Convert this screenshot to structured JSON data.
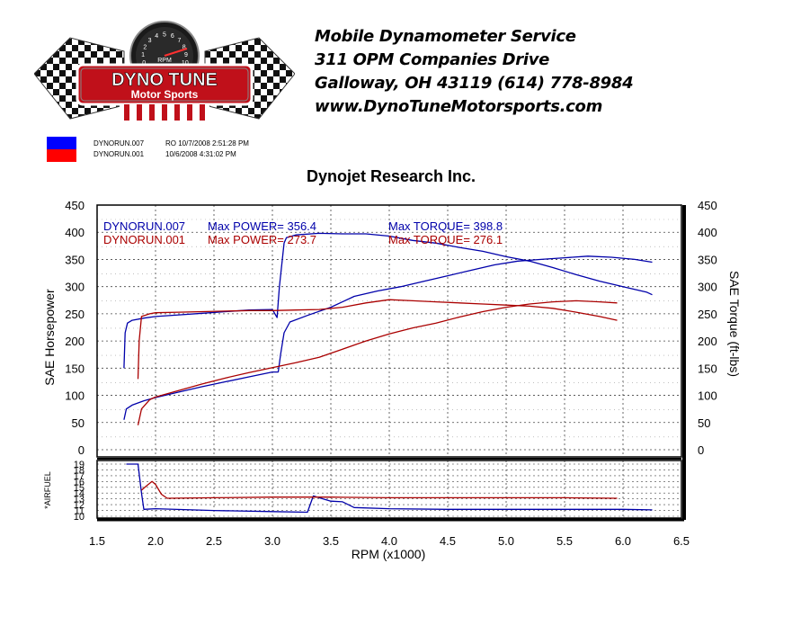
{
  "header": {
    "logo": {
      "line1": "DYNO TUNE",
      "line2": "Motor Sports",
      "gauge_label": "RPM",
      "gauge_numbers": [
        "0",
        "1",
        "2",
        "3",
        "4",
        "5",
        "6",
        "7",
        "8",
        "9",
        "10"
      ]
    },
    "address_lines": [
      "Mobile Dynamometer Service",
      "311 OPM Companies Drive",
      "Galloway, OH  43119   (614)  778-8984",
      "www.DynoTuneMotorsports.com"
    ]
  },
  "runs": [
    {
      "file": "DYNORUN.007",
      "note": "RO 10/7/2008 2:51:28 PM",
      "color": "#0000aa"
    },
    {
      "file": "DYNORUN.001",
      "note": "10/6/2008 4:31:02 PM",
      "color": "#aa0000"
    }
  ],
  "chart_data": {
    "type": "line",
    "title": "Dynojet  Research  Inc.",
    "xlabel": "RPM (x1000)",
    "ylabel_left": "SAE Horsepower",
    "ylabel_right": "SAE Torque (ft-lbs)",
    "ylabel_af": "*AIRFUEL",
    "xlim": [
      1.5,
      6.5
    ],
    "ylim": [
      0,
      450
    ],
    "af_lim": [
      10,
      19
    ],
    "x_ticks": [
      "1.5",
      "2.0",
      "2.5",
      "3.0",
      "3.5",
      "4.0",
      "4.5",
      "5.0",
      "5.5",
      "6.0",
      "6.5"
    ],
    "y_ticks": [
      "0",
      "50",
      "100",
      "150",
      "200",
      "250",
      "300",
      "350",
      "400",
      "450"
    ],
    "af_ticks": [
      "10",
      "11",
      "12",
      "13",
      "14",
      "15",
      "16",
      "17",
      "18",
      "19"
    ],
    "grid": true,
    "legend": [
      {
        "run": "DYNORUN.007",
        "power_label": "Max POWER= 356.4",
        "torque_label": "Max TORQUE= 398.8",
        "color": "#0000aa"
      },
      {
        "run": "DYNORUN.001",
        "power_label": "Max POWER= 273.7",
        "torque_label": "Max TORQUE= 276.1",
        "color": "#aa0000"
      }
    ],
    "series": [
      {
        "run": "DYNORUN.007",
        "quantity": "power",
        "color": "#0000aa",
        "x": [
          1.73,
          1.75,
          1.8,
          1.9,
          2.0,
          2.2,
          2.4,
          2.6,
          2.8,
          3.0,
          3.05,
          3.07,
          3.1,
          3.15,
          3.3,
          3.5,
          3.7,
          3.9,
          4.1,
          4.3,
          4.5,
          4.7,
          4.9,
          5.1,
          5.3,
          5.5,
          5.7,
          5.9,
          6.1,
          6.25
        ],
        "y": [
          55,
          75,
          82,
          90,
          96,
          106,
          116,
          125,
          134,
          143,
          143,
          175,
          215,
          235,
          247,
          262,
          282,
          292,
          300,
          310,
          320,
          330,
          340,
          347,
          350,
          353,
          356,
          354,
          350,
          345
        ]
      },
      {
        "run": "DYNORUN.007",
        "quantity": "torque",
        "color": "#0000aa",
        "x": [
          1.73,
          1.74,
          1.76,
          1.8,
          1.9,
          2.0,
          2.2,
          2.4,
          2.6,
          2.8,
          3.0,
          3.04,
          3.06,
          3.1,
          3.12,
          3.2,
          3.4,
          3.6,
          3.8,
          4.0,
          4.2,
          4.4,
          4.6,
          4.8,
          5.0,
          5.2,
          5.4,
          5.6,
          5.8,
          6.0,
          6.2,
          6.25
        ],
        "y": [
          150,
          215,
          233,
          238,
          242,
          245,
          248,
          251,
          254,
          257,
          258,
          243,
          300,
          380,
          390,
          395,
          398,
          397,
          397,
          393,
          385,
          380,
          372,
          365,
          355,
          347,
          335,
          322,
          310,
          300,
          290,
          285
        ]
      },
      {
        "run": "DYNORUN.001",
        "quantity": "power",
        "color": "#aa0000",
        "x": [
          1.85,
          1.88,
          1.95,
          2.0,
          2.2,
          2.4,
          2.6,
          2.8,
          3.0,
          3.2,
          3.4,
          3.6,
          3.8,
          4.0,
          4.2,
          4.4,
          4.6,
          4.8,
          5.0,
          5.2,
          5.4,
          5.6,
          5.8,
          5.95
        ],
        "y": [
          45,
          75,
          92,
          97,
          109,
          121,
          132,
          142,
          151,
          160,
          170,
          185,
          200,
          213,
          224,
          233,
          244,
          254,
          262,
          268,
          272,
          274,
          272,
          270
        ]
      },
      {
        "run": "DYNORUN.001",
        "quantity": "torque",
        "color": "#aa0000",
        "x": [
          1.85,
          1.86,
          1.88,
          1.95,
          2.0,
          2.2,
          2.4,
          2.6,
          2.8,
          3.0,
          3.2,
          3.4,
          3.6,
          3.8,
          4.0,
          4.2,
          4.4,
          4.6,
          4.8,
          5.0,
          5.2,
          5.4,
          5.6,
          5.8,
          5.95
        ],
        "y": [
          130,
          200,
          245,
          250,
          252,
          253,
          254,
          255,
          256,
          256,
          257,
          258,
          262,
          270,
          276,
          274,
          272,
          270,
          268,
          266,
          264,
          260,
          253,
          245,
          238
        ]
      },
      {
        "run": "DYNORUN.007",
        "quantity": "airfuel",
        "color": "#0000aa",
        "x": [
          1.75,
          1.85,
          1.88,
          1.9,
          2.0,
          2.5,
          3.0,
          3.3,
          3.35,
          3.4,
          3.5,
          3.6,
          3.7,
          4.0,
          4.5,
          5.0,
          5.5,
          6.0,
          6.25
        ],
        "y": [
          19,
          19,
          14,
          11.2,
          11.3,
          11,
          10.8,
          10.7,
          13.5,
          13.2,
          12.6,
          12.5,
          11.5,
          11.3,
          11.2,
          11.2,
          11.2,
          11.2,
          11.1
        ]
      },
      {
        "run": "DYNORUN.001",
        "quantity": "airfuel",
        "color": "#aa0000",
        "x": [
          1.88,
          1.92,
          1.97,
          2.0,
          2.05,
          2.1,
          2.5,
          3.0,
          3.5,
          4.0,
          4.5,
          5.0,
          5.5,
          5.95
        ],
        "y": [
          14.5,
          15.2,
          16,
          15.5,
          13.8,
          13.1,
          13.2,
          13.3,
          13.3,
          13.2,
          13.2,
          13.2,
          13.2,
          13.1
        ]
      }
    ]
  }
}
